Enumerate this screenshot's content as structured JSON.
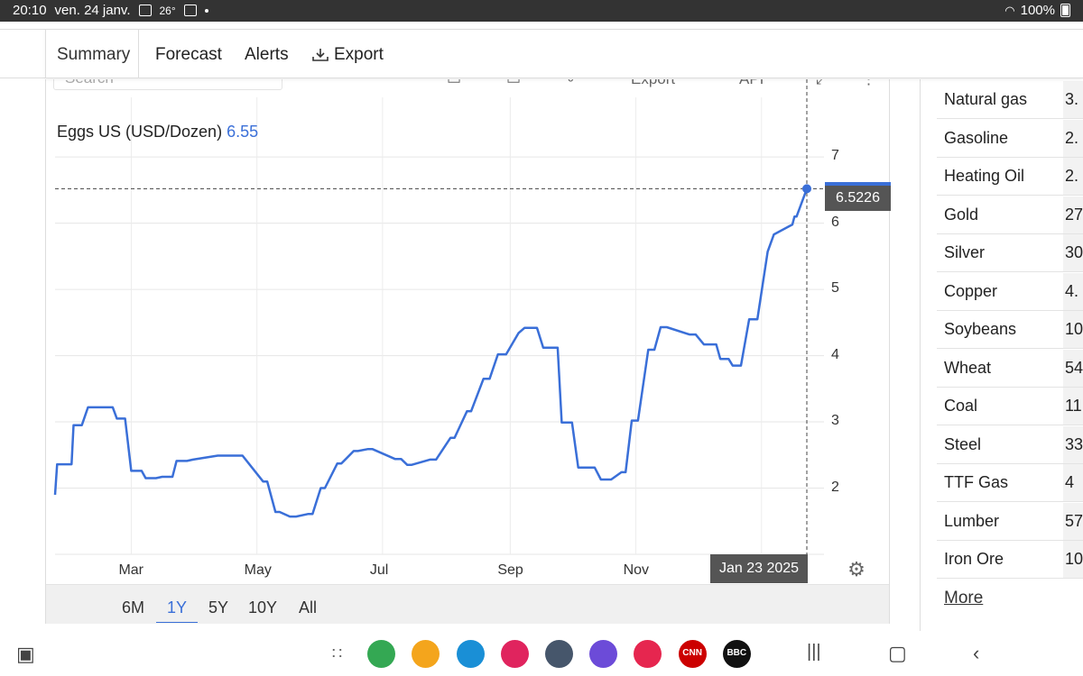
{
  "status_bar": {
    "time": "20:10",
    "date": "ven. 24 janv.",
    "temperature": "26°",
    "battery": "100%"
  },
  "tabs": [
    {
      "label": "Summary"
    },
    {
      "label": "Forecast"
    },
    {
      "label": "Alerts"
    },
    {
      "label": "Export"
    }
  ],
  "toolbar_clipped": {
    "search_placeholder": "Search",
    "export_label": "Export",
    "api_label": "API"
  },
  "chart": {
    "title": "Eggs US (USD/Dozen)",
    "current_value": "6.55",
    "price_badge": "6.5226",
    "crosshair_date": "Jan 23 2025",
    "ranges": [
      "6M",
      "1Y",
      "5Y",
      "10Y",
      "All"
    ],
    "active_range": "1Y"
  },
  "chart_data": {
    "type": "line",
    "title": "Eggs US (USD/Dozen)",
    "x_tick_labels": [
      "Mar",
      "May",
      "Jul",
      "Sep",
      "Nov"
    ],
    "y_tick_labels": [
      "2",
      "3",
      "4",
      "5",
      "6",
      "7"
    ],
    "ylim": [
      1.0,
      7.9
    ],
    "x_range": [
      "2024-01-24",
      "2025-01-23"
    ],
    "line_color": "#3a6fd8",
    "series": [
      {
        "x": [
          "2024-01-24",
          "2024-01-25",
          "2024-01-26",
          "2024-02-01",
          "2024-02-02",
          "2024-02-06",
          "2024-02-09",
          "2024-02-21",
          "2024-02-23",
          "2024-02-27",
          "2024-03-01",
          "2024-03-06",
          "2024-03-08",
          "2024-03-13",
          "2024-03-16",
          "2024-03-21",
          "2024-03-23",
          "2024-03-28",
          "2024-03-31",
          "2024-04-12",
          "2024-04-15",
          "2024-04-20",
          "2024-04-24",
          "2024-05-04",
          "2024-05-06",
          "2024-05-10",
          "2024-05-12",
          "2024-05-17",
          "2024-05-20",
          "2024-05-26",
          "2024-05-28",
          "2024-06-01",
          "2024-06-03",
          "2024-06-09",
          "2024-06-11",
          "2024-06-17",
          "2024-06-19",
          "2024-06-24",
          "2024-06-26",
          "2024-07-07",
          "2024-07-10",
          "2024-07-13",
          "2024-07-15",
          "2024-07-24",
          "2024-07-27",
          "2024-08-03",
          "2024-08-05",
          "2024-08-11",
          "2024-08-13",
          "2024-08-19",
          "2024-08-22",
          "2024-08-26",
          "2024-08-30",
          "2024-09-05",
          "2024-09-08",
          "2024-09-14",
          "2024-09-17",
          "2024-09-24",
          "2024-09-26",
          "2024-10-01",
          "2024-10-04",
          "2024-10-12",
          "2024-10-15",
          "2024-10-18",
          "2024-10-20",
          "2024-10-25",
          "2024-10-27",
          "2024-10-30",
          "2024-11-02",
          "2024-11-07",
          "2024-11-10",
          "2024-11-13",
          "2024-11-16",
          "2024-11-27",
          "2024-11-30",
          "2024-12-04",
          "2024-12-06",
          "2024-12-10",
          "2024-12-12",
          "2024-12-16",
          "2024-12-18",
          "2024-12-22",
          "2024-12-26",
          "2024-12-30",
          "2025-01-04",
          "2025-01-07",
          "2025-01-16",
          "2025-01-17",
          "2025-01-18",
          "2025-01-23"
        ],
        "values": [
          1.9,
          2.36,
          2.36,
          2.36,
          2.95,
          2.95,
          3.22,
          3.22,
          3.05,
          3.05,
          2.26,
          2.26,
          2.15,
          2.15,
          2.17,
          2.17,
          2.41,
          2.41,
          2.43,
          2.49,
          2.49,
          2.49,
          2.49,
          2.1,
          2.1,
          1.64,
          1.64,
          1.57,
          1.57,
          1.61,
          1.61,
          2.0,
          2.0,
          2.37,
          2.37,
          2.56,
          2.56,
          2.59,
          2.59,
          2.44,
          2.44,
          2.35,
          2.35,
          2.43,
          2.43,
          2.76,
          2.76,
          3.16,
          3.16,
          3.65,
          3.65,
          4.02,
          4.02,
          4.34,
          4.42,
          4.42,
          4.12,
          4.12,
          2.99,
          2.99,
          2.31,
          2.31,
          2.13,
          2.13,
          2.13,
          2.24,
          2.24,
          3.02,
          3.02,
          4.09,
          4.09,
          4.43,
          4.43,
          4.32,
          4.32,
          4.17,
          4.17,
          4.17,
          3.95,
          3.95,
          3.85,
          3.85,
          4.55,
          4.55,
          5.57,
          5.83,
          5.98,
          6.1,
          6.1,
          6.52
        ]
      }
    ]
  },
  "commodities": [
    {
      "name": "Natural gas",
      "value": "3."
    },
    {
      "name": "Gasoline",
      "value": "2."
    },
    {
      "name": "Heating Oil",
      "value": "2."
    },
    {
      "name": "Gold",
      "value": "27"
    },
    {
      "name": "Silver",
      "value": "30"
    },
    {
      "name": "Copper",
      "value": "4."
    },
    {
      "name": "Soybeans",
      "value": "10"
    },
    {
      "name": "Wheat",
      "value": "54"
    },
    {
      "name": "Coal",
      "value": "11"
    },
    {
      "name": "Steel",
      "value": "33"
    },
    {
      "name": "TTF Gas",
      "value": "4"
    },
    {
      "name": "Lumber",
      "value": "57"
    },
    {
      "name": "Iron Ore",
      "value": "10"
    }
  ],
  "more_link": "More",
  "dock_apps": [
    {
      "icon": "app-grid-icon",
      "color": "#666666"
    },
    {
      "icon": "maps-icon",
      "color": "#34a853"
    },
    {
      "icon": "files-icon",
      "color": "#f4a51c"
    },
    {
      "icon": "store-icon",
      "color": "#1a8fd6"
    },
    {
      "icon": "gallery-icon",
      "color": "#e0245e"
    },
    {
      "icon": "settings-icon",
      "color": "#46566b"
    },
    {
      "icon": "internet-icon",
      "color": "#6c4bd8"
    },
    {
      "icon": "camera-icon",
      "color": "#e6264f"
    },
    {
      "icon": "cnn-icon",
      "color": "#cc0000",
      "label": "CNN"
    },
    {
      "icon": "bbc-icon",
      "color": "#111111",
      "label": "BBC"
    }
  ]
}
